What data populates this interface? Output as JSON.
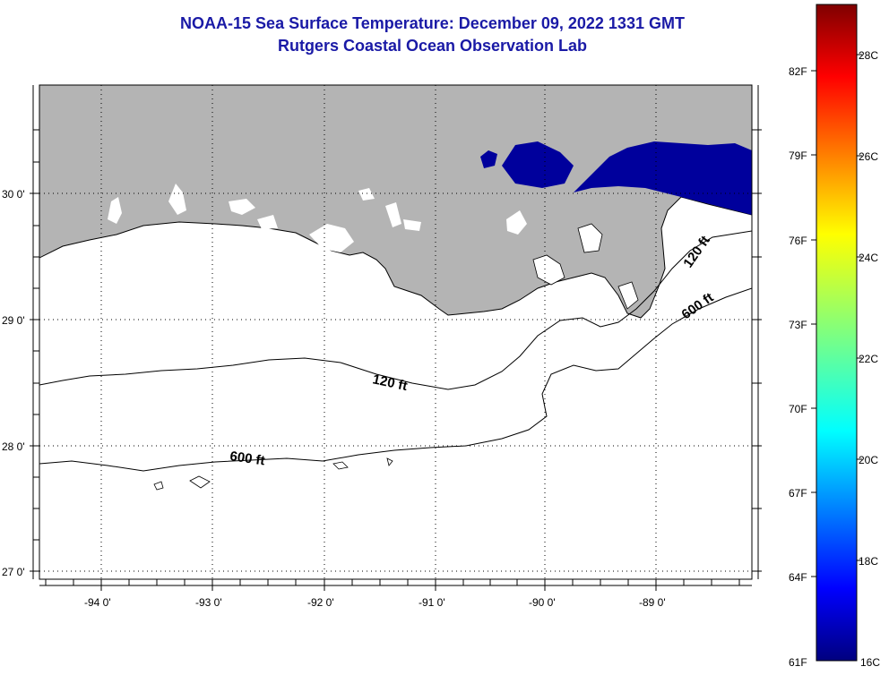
{
  "title": {
    "line1": "NOAA-15 Sea Surface Temperature:  December 09, 2022 1331 GMT",
    "line2": "Rutgers Coastal Ocean Observation Lab"
  },
  "map": {
    "lat_labels": [
      "30 0'",
      "29 0'",
      "28 0'",
      "27 0'"
    ],
    "lon_labels": [
      "-94 0'",
      "-93 0'",
      "-92 0'",
      "-91 0'",
      "-90 0'",
      "-89 0'"
    ],
    "lat_range": [
      26.95,
      30.85
    ],
    "lon_range": [
      -94.55,
      -88.15
    ],
    "land_color": "#b4b4b4",
    "water_color": "#ffffff",
    "sst_color": "#00009c",
    "contours": [
      {
        "label": "120 ft",
        "label_repeat": "120 ft"
      },
      {
        "label": "600 ft",
        "label_repeat": "600 ft"
      }
    ]
  },
  "colorbar": {
    "fahrenheit": [
      "82F",
      "79F",
      "76F",
      "73F",
      "70F",
      "67F",
      "64F",
      "61F"
    ],
    "celsius": [
      "28C",
      "26C",
      "24C",
      "22C",
      "20C",
      "18C",
      "16C"
    ],
    "range_c": [
      16,
      29
    ]
  }
}
